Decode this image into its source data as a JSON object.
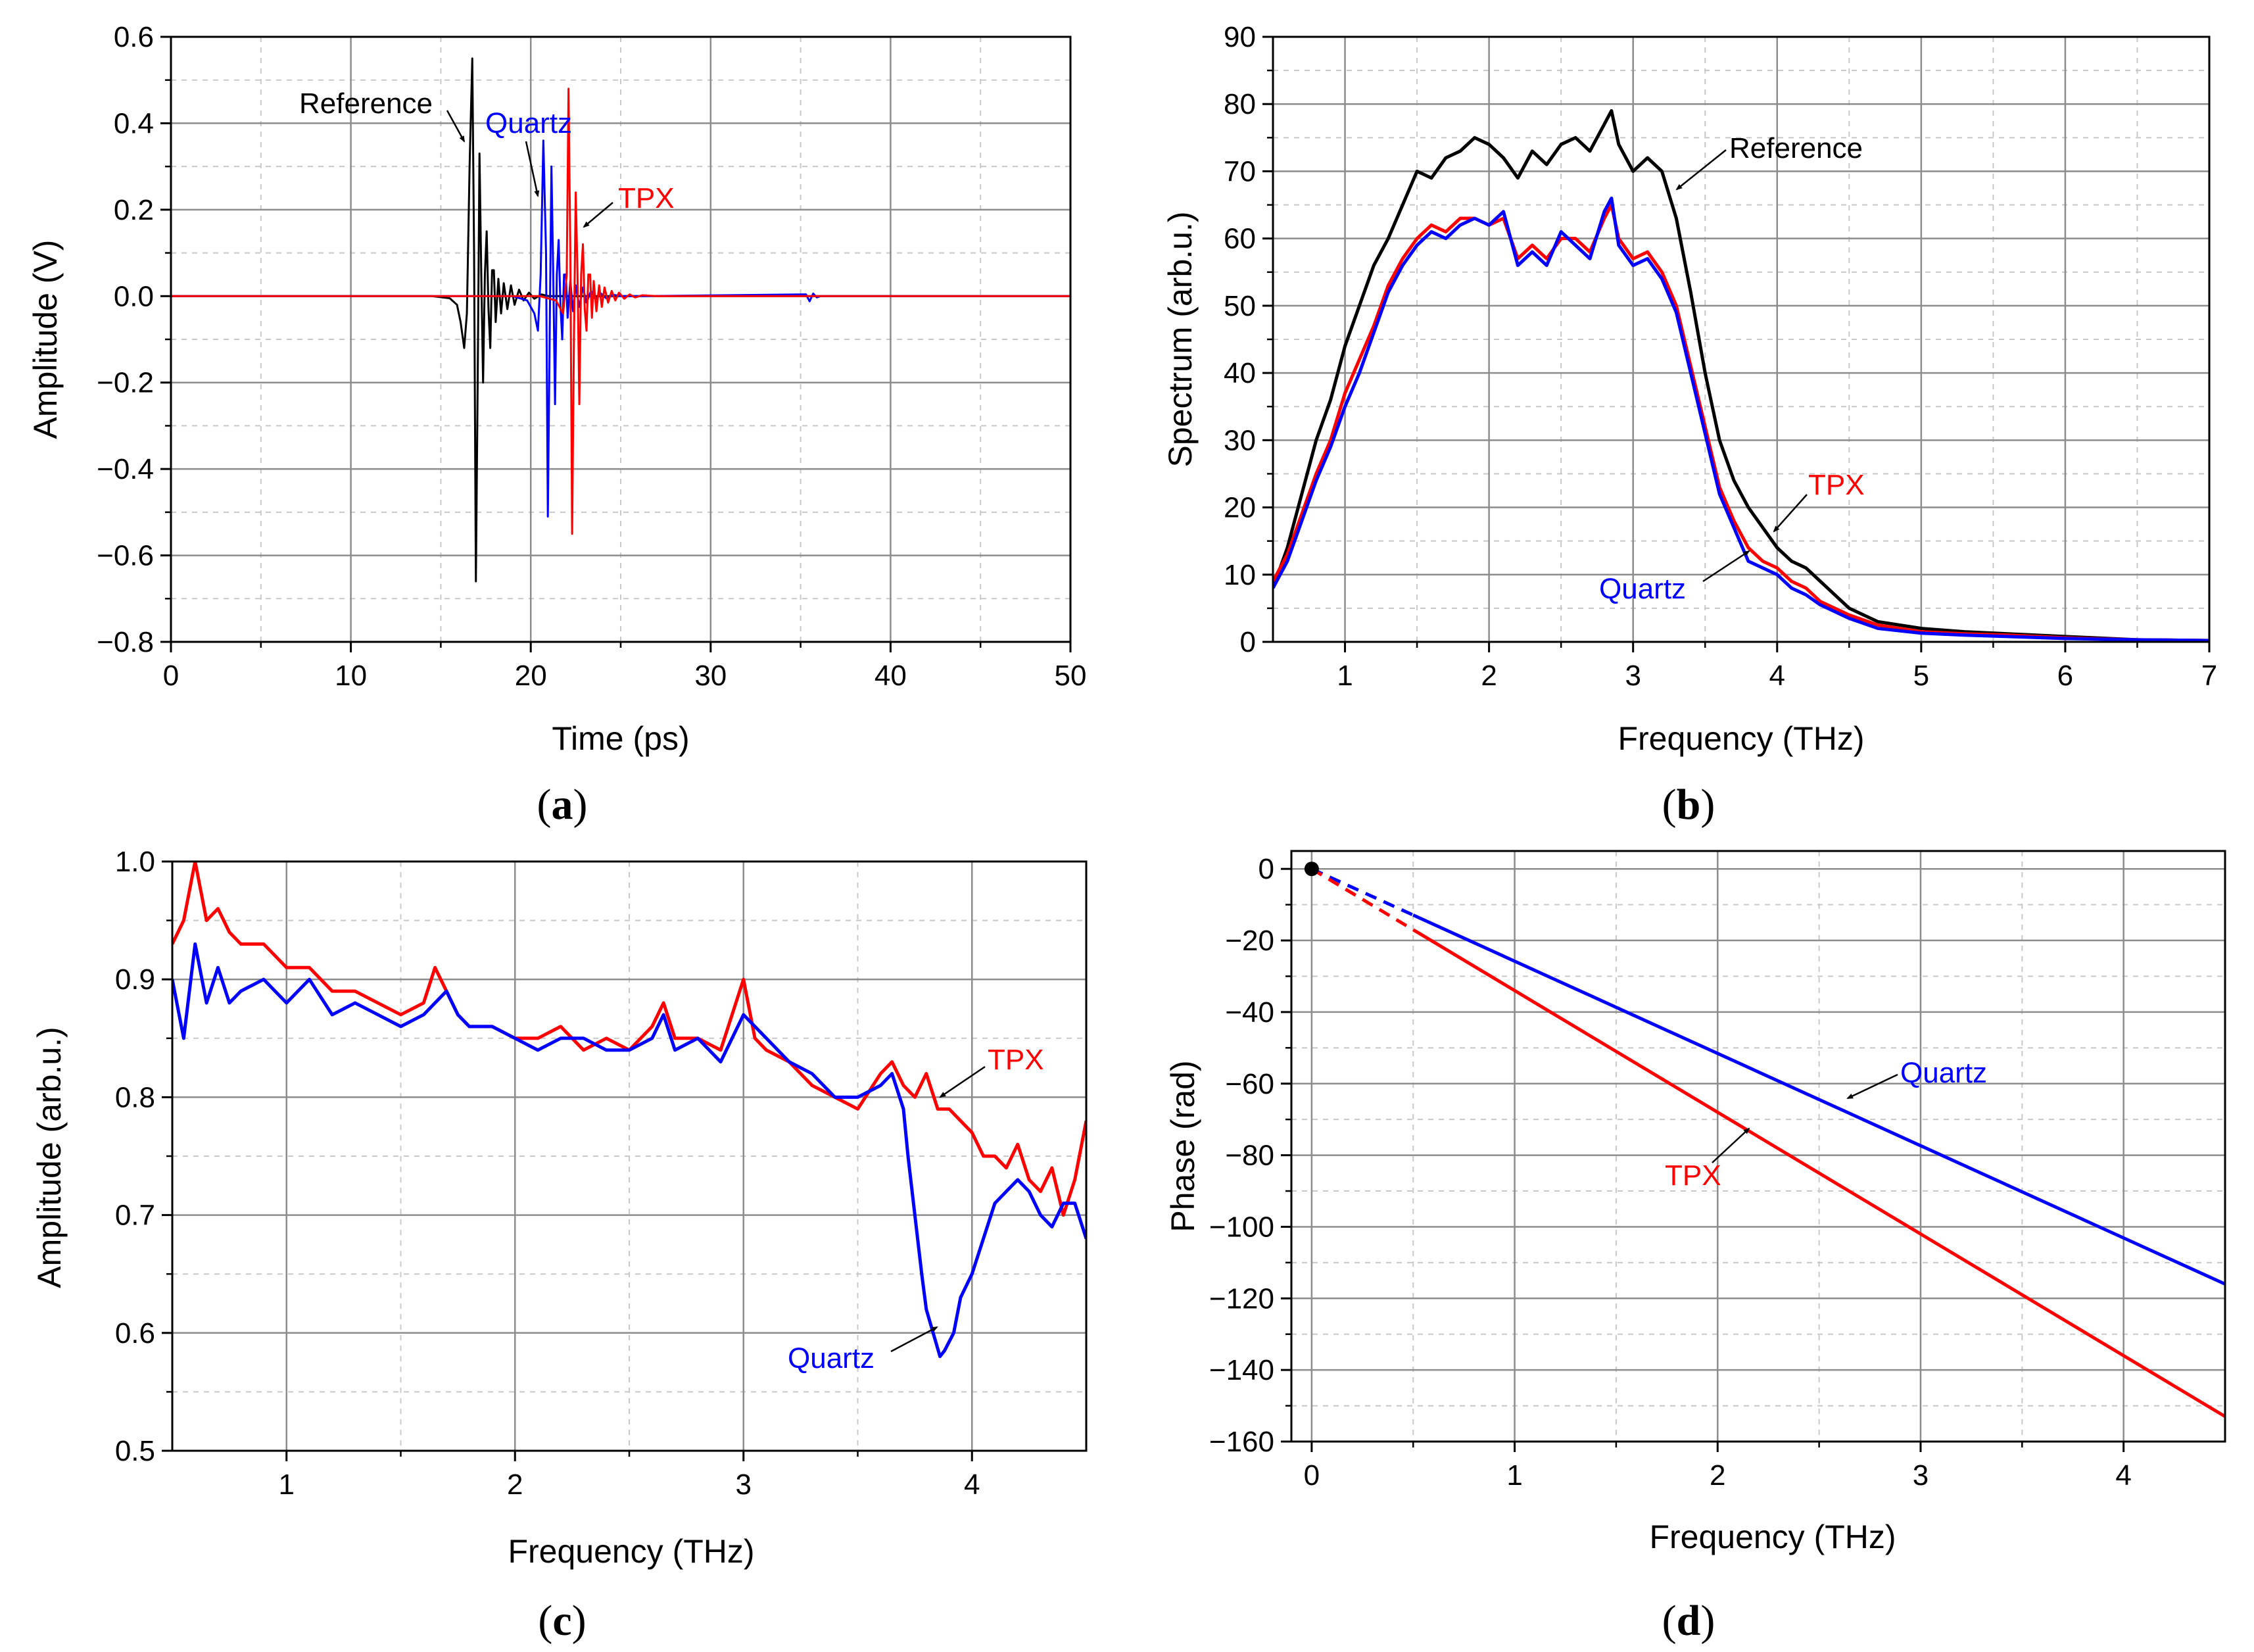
{
  "colors": {
    "reference": "#000000",
    "quartz": "#0000ff",
    "tpx": "#ff0000",
    "grid_major": "#8c8c8c",
    "grid_minor": "#c8c8c8"
  },
  "chart_data": [
    {
      "id": "a",
      "panel_label": "a",
      "type": "line",
      "xlabel": "Time (ps)",
      "ylabel": "Amplitude (V)",
      "xlim": [
        0,
        50
      ],
      "ylim": [
        -0.8,
        0.6
      ],
      "xticks": [
        0,
        10,
        20,
        30,
        40,
        50
      ],
      "xtick_labels": [
        "0",
        "10",
        "20",
        "30",
        "40",
        "50"
      ],
      "yticks": [
        -0.8,
        -0.6,
        -0.4,
        -0.2,
        0.0,
        0.2,
        0.4,
        0.6
      ],
      "ytick_labels": [
        "−0.8",
        "−0.6",
        "−0.4",
        "−0.2",
        "0.0",
        "0.2",
        "0.4",
        "0.6"
      ],
      "grid": true,
      "series": [
        {
          "name": "Reference",
          "color": "#000000",
          "x": [
            0,
            14.5,
            15.5,
            15.9,
            16.1,
            16.3,
            16.45,
            16.6,
            16.75,
            16.85,
            16.95,
            17.05,
            17.15,
            17.25,
            17.35,
            17.45,
            17.55,
            17.65,
            17.75,
            17.85,
            17.95,
            18.05,
            18.2,
            18.35,
            18.5,
            18.7,
            18.9,
            19.1,
            19.35,
            19.6,
            19.9,
            20.2,
            20.6,
            21,
            22,
            50
          ],
          "y": [
            0,
            0,
            -0.005,
            -0.02,
            -0.06,
            -0.12,
            -0.04,
            0.3,
            0.55,
            0.1,
            -0.66,
            -0.2,
            0.33,
            0.05,
            -0.2,
            0.05,
            0.15,
            -0.03,
            -0.12,
            0.06,
            0.06,
            -0.06,
            0.04,
            -0.04,
            0.03,
            -0.03,
            0.025,
            -0.02,
            0.015,
            -0.01,
            0.008,
            -0.006,
            0.004,
            0,
            0,
            0
          ]
        },
        {
          "name": "Quartz",
          "color": "#0000ff",
          "x": [
            0,
            19.0,
            19.8,
            20.2,
            20.4,
            20.55,
            20.7,
            20.85,
            20.95,
            21.05,
            21.15,
            21.25,
            21.35,
            21.45,
            21.55,
            21.65,
            21.75,
            21.85,
            21.95,
            22.05,
            22.2,
            22.35,
            22.5,
            22.7,
            22.9,
            23.1,
            23.35,
            23.6,
            23.9,
            24.2,
            24.6,
            25,
            26,
            35.3,
            35.5,
            35.7,
            35.9,
            36.1,
            50
          ],
          "y": [
            0,
            0,
            -0.01,
            -0.04,
            -0.08,
            0.05,
            0.36,
            0.1,
            -0.51,
            -0.1,
            0.3,
            0.05,
            -0.25,
            0.05,
            0.13,
            -0.02,
            -0.1,
            0.05,
            0.05,
            -0.05,
            0.035,
            -0.035,
            0.025,
            -0.025,
            0.02,
            -0.015,
            0.012,
            -0.008,
            0.006,
            -0.005,
            0.003,
            0,
            0,
            0.004,
            -0.012,
            0.006,
            -0.003,
            0,
            0
          ]
        },
        {
          "name": "TPX",
          "color": "#ff0000",
          "x": [
            0,
            20.5,
            21.4,
            21.8,
            22.0,
            22.1,
            22.2,
            22.3,
            22.4,
            22.5,
            22.6,
            22.7,
            22.8,
            22.9,
            23.0,
            23.1,
            23.2,
            23.3,
            23.4,
            23.5,
            23.65,
            23.8,
            23.95,
            24.1,
            24.3,
            24.5,
            24.7,
            24.9,
            25.2,
            25.5,
            25.8,
            26.2,
            27,
            50
          ],
          "y": [
            0,
            0,
            -0.01,
            -0.04,
            0.05,
            0.48,
            0.1,
            -0.55,
            -0.1,
            0.24,
            0.05,
            -0.25,
            0.05,
            0.12,
            -0.03,
            -0.08,
            0.05,
            0.05,
            -0.05,
            0.035,
            -0.035,
            0.025,
            -0.025,
            0.02,
            -0.015,
            0.012,
            -0.01,
            0.008,
            -0.006,
            0.004,
            -0.003,
            0.002,
            0,
            0
          ]
        }
      ],
      "annotations": [
        {
          "text": "Reference",
          "color": "#000000"
        },
        {
          "text": "Quartz",
          "color": "#0000ff"
        },
        {
          "text": "TPX",
          "color": "#ff0000"
        }
      ]
    },
    {
      "id": "b",
      "panel_label": "b",
      "type": "line",
      "xlabel": "Frequency (THz)",
      "ylabel": "Spectrum (arb.u.)",
      "xlim": [
        0.5,
        7
      ],
      "ylim": [
        0,
        90
      ],
      "xticks": [
        1,
        2,
        3,
        4,
        5,
        6,
        7
      ],
      "xtick_labels": [
        "1",
        "2",
        "3",
        "4",
        "5",
        "6",
        "7"
      ],
      "yticks": [
        0,
        10,
        20,
        30,
        40,
        50,
        60,
        70,
        80,
        90
      ],
      "ytick_labels": [
        "0",
        "10",
        "20",
        "30",
        "40",
        "50",
        "60",
        "70",
        "80",
        "90"
      ],
      "grid": true,
      "series": [
        {
          "name": "Reference",
          "color": "#000000",
          "x": [
            0.5,
            0.6,
            0.7,
            0.8,
            0.9,
            1.0,
            1.1,
            1.2,
            1.3,
            1.4,
            1.5,
            1.6,
            1.7,
            1.8,
            1.9,
            2.0,
            2.1,
            2.2,
            2.3,
            2.4,
            2.5,
            2.6,
            2.7,
            2.8,
            2.85,
            2.9,
            3.0,
            3.1,
            3.2,
            3.3,
            3.4,
            3.5,
            3.6,
            3.7,
            3.8,
            3.9,
            4.0,
            4.1,
            4.2,
            4.3,
            4.4,
            4.5,
            4.7,
            5.0,
            5.3,
            5.6,
            6.0,
            6.5,
            7.0
          ],
          "y": [
            8,
            14,
            22,
            30,
            36,
            44,
            50,
            56,
            60,
            65,
            70,
            69,
            72,
            73,
            75,
            74,
            72,
            69,
            73,
            71,
            74,
            75,
            73,
            77,
            79,
            74,
            70,
            72,
            70,
            63,
            52,
            40,
            30,
            24,
            20,
            17,
            14,
            12,
            11,
            9,
            7,
            5,
            3,
            2,
            1.5,
            1.2,
            0.8,
            0.3,
            0.2
          ]
        },
        {
          "name": "TPX",
          "color": "#ff0000",
          "x": [
            0.5,
            0.6,
            0.7,
            0.8,
            0.9,
            1.0,
            1.1,
            1.2,
            1.3,
            1.4,
            1.5,
            1.6,
            1.7,
            1.8,
            1.9,
            2.0,
            2.1,
            2.2,
            2.3,
            2.4,
            2.5,
            2.6,
            2.7,
            2.8,
            2.85,
            2.9,
            3.0,
            3.1,
            3.2,
            3.3,
            3.4,
            3.5,
            3.6,
            3.7,
            3.8,
            3.9,
            4.0,
            4.1,
            4.2,
            4.3,
            4.4,
            4.5,
            4.7,
            5.0,
            5.3,
            5.6,
            6.0,
            6.5,
            7.0
          ],
          "y": [
            9,
            13,
            19,
            25,
            30,
            37,
            42,
            47,
            53,
            57,
            60,
            62,
            61,
            63,
            63,
            62,
            63,
            57,
            59,
            57,
            60,
            60,
            58,
            63,
            65,
            60,
            57,
            58,
            55,
            50,
            41,
            32,
            23,
            18,
            14,
            12,
            11,
            9,
            8,
            6,
            5,
            4,
            2.5,
            1.5,
            1.2,
            1.0,
            0.6,
            0.3,
            0.2
          ]
        },
        {
          "name": "Quartz",
          "color": "#0000ff",
          "x": [
            0.5,
            0.6,
            0.7,
            0.8,
            0.9,
            1.0,
            1.1,
            1.2,
            1.3,
            1.4,
            1.5,
            1.6,
            1.7,
            1.8,
            1.9,
            2.0,
            2.1,
            2.2,
            2.3,
            2.4,
            2.5,
            2.6,
            2.7,
            2.8,
            2.85,
            2.9,
            3.0,
            3.1,
            3.2,
            3.3,
            3.4,
            3.5,
            3.6,
            3.7,
            3.8,
            3.9,
            4.0,
            4.1,
            4.2,
            4.3,
            4.4,
            4.5,
            4.7,
            5.0,
            5.3,
            5.6,
            6.0,
            6.5,
            7.0
          ],
          "y": [
            8,
            12,
            18,
            24,
            29,
            35,
            40,
            46,
            52,
            56,
            59,
            61,
            60,
            62,
            63,
            62,
            64,
            56,
            58,
            56,
            61,
            59,
            57,
            64,
            66,
            59,
            56,
            57,
            54,
            49,
            40,
            31,
            22,
            17,
            12,
            11,
            10,
            8,
            7,
            5.5,
            4.5,
            3.5,
            2,
            1.3,
            1.0,
            0.8,
            0.5,
            0.3,
            0.2
          ]
        }
      ],
      "annotations": [
        {
          "text": "Reference",
          "color": "#000000"
        },
        {
          "text": "TPX",
          "color": "#ff0000"
        },
        {
          "text": "Quartz",
          "color": "#0000ff"
        }
      ]
    },
    {
      "id": "c",
      "panel_label": "c",
      "type": "line",
      "xlabel": "Frequency (THz)",
      "ylabel": "Amplitude (arb.u.)",
      "xlim": [
        0.5,
        4.5
      ],
      "ylim": [
        0.5,
        1.0
      ],
      "xticks": [
        1,
        2,
        3,
        4
      ],
      "xtick_labels": [
        "1",
        "2",
        "3",
        "4"
      ],
      "yticks": [
        0.5,
        0.6,
        0.7,
        0.8,
        0.9,
        1.0
      ],
      "ytick_labels": [
        "0.5",
        "0.6",
        "0.7",
        "0.8",
        "0.9",
        "1.0"
      ],
      "grid": true,
      "series": [
        {
          "name": "TPX",
          "color": "#ff0000",
          "x": [
            0.5,
            0.55,
            0.6,
            0.65,
            0.7,
            0.75,
            0.8,
            0.9,
            1.0,
            1.1,
            1.2,
            1.3,
            1.4,
            1.5,
            1.6,
            1.65,
            1.7,
            1.75,
            1.8,
            1.9,
            2.0,
            2.1,
            2.2,
            2.3,
            2.4,
            2.5,
            2.6,
            2.65,
            2.7,
            2.8,
            2.9,
            2.95,
            3.0,
            3.05,
            3.1,
            3.2,
            3.3,
            3.4,
            3.5,
            3.6,
            3.65,
            3.7,
            3.75,
            3.8,
            3.85,
            3.9,
            3.95,
            4.0,
            4.05,
            4.1,
            4.15,
            4.2,
            4.25,
            4.3,
            4.35,
            4.4,
            4.45,
            4.5
          ],
          "y": [
            0.93,
            0.95,
            1.0,
            0.95,
            0.96,
            0.94,
            0.93,
            0.93,
            0.91,
            0.91,
            0.89,
            0.89,
            0.88,
            0.87,
            0.88,
            0.91,
            0.89,
            0.87,
            0.86,
            0.86,
            0.85,
            0.85,
            0.86,
            0.84,
            0.85,
            0.84,
            0.86,
            0.88,
            0.85,
            0.85,
            0.84,
            0.87,
            0.9,
            0.85,
            0.84,
            0.83,
            0.81,
            0.8,
            0.79,
            0.82,
            0.83,
            0.81,
            0.8,
            0.82,
            0.79,
            0.79,
            0.78,
            0.77,
            0.75,
            0.75,
            0.74,
            0.76,
            0.73,
            0.72,
            0.74,
            0.7,
            0.73,
            0.78
          ]
        },
        {
          "name": "Quartz",
          "color": "#0000ff",
          "x": [
            0.5,
            0.55,
            0.6,
            0.65,
            0.7,
            0.75,
            0.8,
            0.9,
            1.0,
            1.1,
            1.2,
            1.3,
            1.4,
            1.5,
            1.6,
            1.65,
            1.7,
            1.75,
            1.8,
            1.9,
            2.0,
            2.1,
            2.2,
            2.3,
            2.4,
            2.5,
            2.6,
            2.65,
            2.7,
            2.8,
            2.9,
            2.95,
            3.0,
            3.05,
            3.1,
            3.2,
            3.3,
            3.4,
            3.5,
            3.6,
            3.65,
            3.7,
            3.72,
            3.75,
            3.78,
            3.8,
            3.83,
            3.86,
            3.88,
            3.92,
            3.95,
            4.0,
            4.05,
            4.1,
            4.15,
            4.2,
            4.25,
            4.3,
            4.35,
            4.4,
            4.45,
            4.5
          ],
          "y": [
            0.9,
            0.85,
            0.93,
            0.88,
            0.91,
            0.88,
            0.89,
            0.9,
            0.88,
            0.9,
            0.87,
            0.88,
            0.87,
            0.86,
            0.87,
            0.88,
            0.89,
            0.87,
            0.86,
            0.86,
            0.85,
            0.84,
            0.85,
            0.85,
            0.84,
            0.84,
            0.85,
            0.87,
            0.84,
            0.85,
            0.83,
            0.85,
            0.87,
            0.86,
            0.85,
            0.83,
            0.82,
            0.8,
            0.8,
            0.81,
            0.82,
            0.79,
            0.75,
            0.7,
            0.65,
            0.62,
            0.6,
            0.58,
            0.585,
            0.6,
            0.63,
            0.65,
            0.68,
            0.71,
            0.72,
            0.73,
            0.72,
            0.7,
            0.69,
            0.71,
            0.71,
            0.68
          ]
        }
      ],
      "annotations": [
        {
          "text": "TPX",
          "color": "#ff0000"
        },
        {
          "text": "Quartz",
          "color": "#0000ff"
        }
      ]
    },
    {
      "id": "d",
      "panel_label": "d",
      "type": "line",
      "xlabel": "Frequency (THz)",
      "ylabel": "Phase (rad)",
      "xlim": [
        -0.1,
        4.5
      ],
      "ylim": [
        -160,
        5
      ],
      "xticks": [
        0,
        1,
        2,
        3,
        4
      ],
      "xtick_labels": [
        "0",
        "1",
        "2",
        "3",
        "4"
      ],
      "yticks": [
        -160,
        -140,
        -120,
        -100,
        -80,
        -60,
        -40,
        -20,
        0
      ],
      "ytick_labels": [
        "−160",
        "−140",
        "−120",
        "−100",
        "−80",
        "−60",
        "−40",
        "−20",
        "0"
      ],
      "grid": true,
      "origin_point": {
        "x": 0,
        "y": 0
      },
      "series": [
        {
          "name": "Quartz",
          "color": "#0000ff",
          "x": [
            0,
            0.5,
            4.5
          ],
          "y": [
            0,
            -12.9,
            -116
          ],
          "dashed_until": 0.5
        },
        {
          "name": "TPX",
          "color": "#ff0000",
          "x": [
            0,
            0.5,
            4.5
          ],
          "y": [
            0,
            -17.0,
            -153
          ],
          "dashed_until": 0.5
        }
      ],
      "annotations": [
        {
          "text": "Quartz",
          "color": "#0000ff"
        },
        {
          "text": "TPX",
          "color": "#ff0000"
        }
      ]
    }
  ]
}
